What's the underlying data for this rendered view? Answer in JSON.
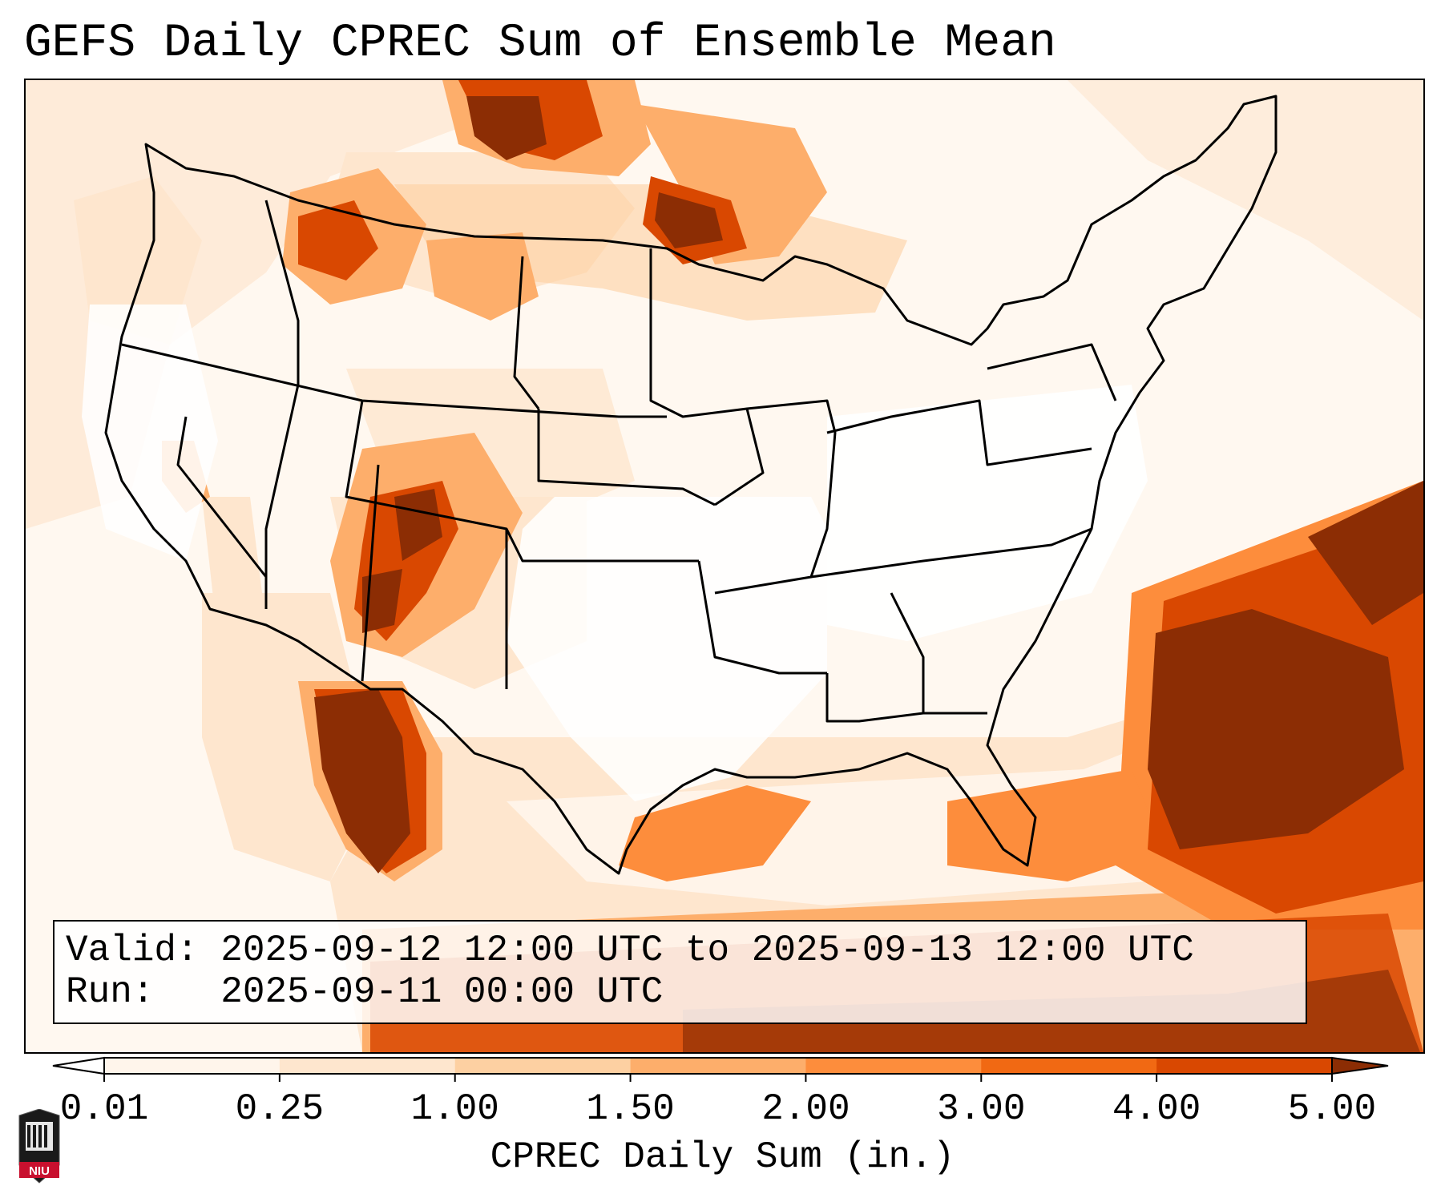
{
  "title": "GEFS Daily CPREC Sum of Ensemble Mean",
  "info": {
    "valid_label": "Valid:",
    "valid_value": "2025-09-12 12:00 UTC to 2025-09-13 12:00 UTC",
    "run_label": "Run:",
    "run_value": "2025-09-11 00:00 UTC"
  },
  "colorbar": {
    "title": "CPREC Daily Sum (in.)",
    "ticks": [
      "0.01",
      "0.25",
      "1.00",
      "1.50",
      "2.00",
      "3.00",
      "4.00",
      "5.00"
    ],
    "colors": [
      "#fff5eb",
      "#fee6ce",
      "#fdd0a2",
      "#fdae6b",
      "#fd8d3c",
      "#f16913",
      "#d94801",
      "#8c2d04"
    ],
    "extend": "both"
  },
  "logo": {
    "text": "NIU",
    "color": "#c8102e"
  },
  "colors": {
    "border": "#000000",
    "level1": "#fff5eb",
    "level2": "#fee6ce",
    "level3": "#fdd0a2",
    "level4": "#fdae6b",
    "level5": "#fd8d3c",
    "level6": "#f16913",
    "level7": "#d94801",
    "level8": "#8c2d04"
  }
}
